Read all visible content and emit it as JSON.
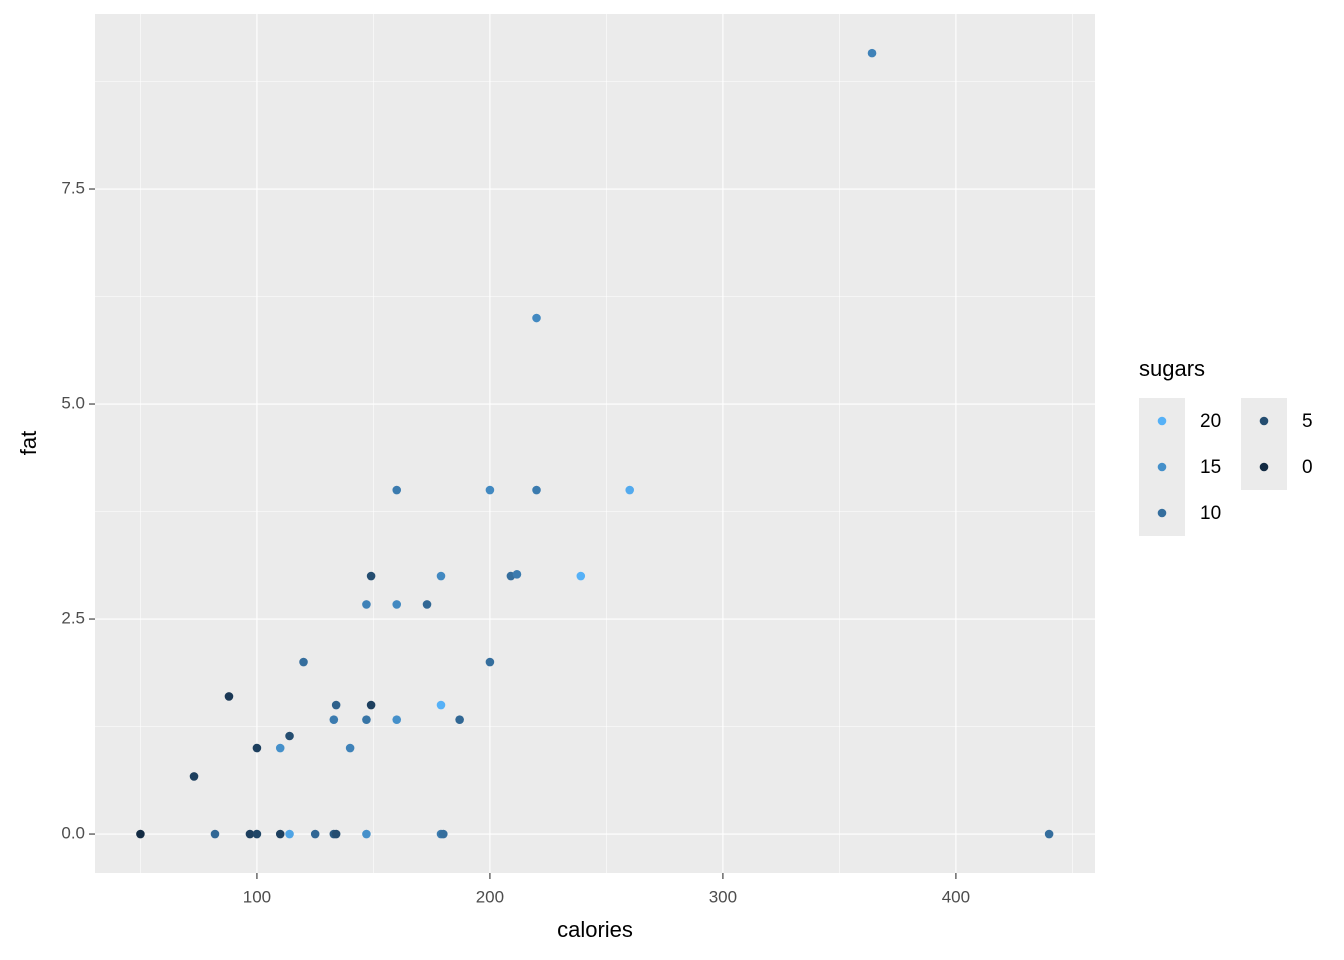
{
  "chart_data": {
    "type": "scatter",
    "x_label": "calories",
    "y_label": "fat",
    "x": [
      364,
      440,
      220,
      160,
      200,
      220,
      260,
      149,
      179,
      209,
      211.6,
      239,
      147,
      160,
      173,
      120,
      200,
      88,
      134,
      149,
      179,
      133,
      147,
      160,
      187,
      114,
      100,
      110,
      140,
      73,
      50,
      82,
      97,
      100,
      110,
      114,
      125,
      133,
      134,
      147,
      179,
      180
    ],
    "y": [
      9.08,
      0,
      6,
      4,
      4,
      4,
      4,
      3,
      3,
      3,
      3.02,
      3,
      2.67,
      2.67,
      2.67,
      2,
      2,
      1.6,
      1.5,
      1.5,
      1.5,
      1.33,
      1.33,
      1.33,
      1.33,
      1.14,
      1,
      1,
      1,
      0.67,
      0,
      0,
      0,
      0,
      0,
      0,
      0,
      0,
      0,
      0,
      0,
      0
    ],
    "sugars": [
      13,
      10,
      14,
      12,
      14,
      12,
      19,
      5,
      14,
      10,
      12,
      20,
      13,
      14,
      9,
      10,
      10,
      2,
      8,
      3,
      20,
      12,
      11,
      15,
      9,
      5,
      3,
      15,
      13,
      3,
      0,
      9,
      3,
      4,
      3,
      18,
      9,
      7,
      5,
      15,
      12,
      10
    ],
    "xlim": [
      30.5,
      459.7
    ],
    "ylim": [
      -0.453,
      9.535
    ],
    "xticks": [
      100,
      200,
      300,
      400
    ],
    "yticks": [
      {
        "value": 0,
        "label": "0.0"
      },
      {
        "value": 2.5,
        "label": "2.5"
      },
      {
        "value": 5,
        "label": "5.0"
      },
      {
        "value": 7.5,
        "label": "7.5"
      }
    ],
    "x_minor_grid": [
      50,
      150,
      250,
      350,
      450
    ],
    "y_minor_grid": [
      1.25,
      3.75,
      6.25,
      8.75
    ],
    "color_scale": {
      "low": "#132B43",
      "high": "#56B1F7",
      "limits": [
        0,
        20
      ]
    },
    "legend": {
      "title": "sugars",
      "breaks": [
        20,
        15,
        10,
        5,
        0
      ],
      "position": "right"
    },
    "grid": true
  }
}
